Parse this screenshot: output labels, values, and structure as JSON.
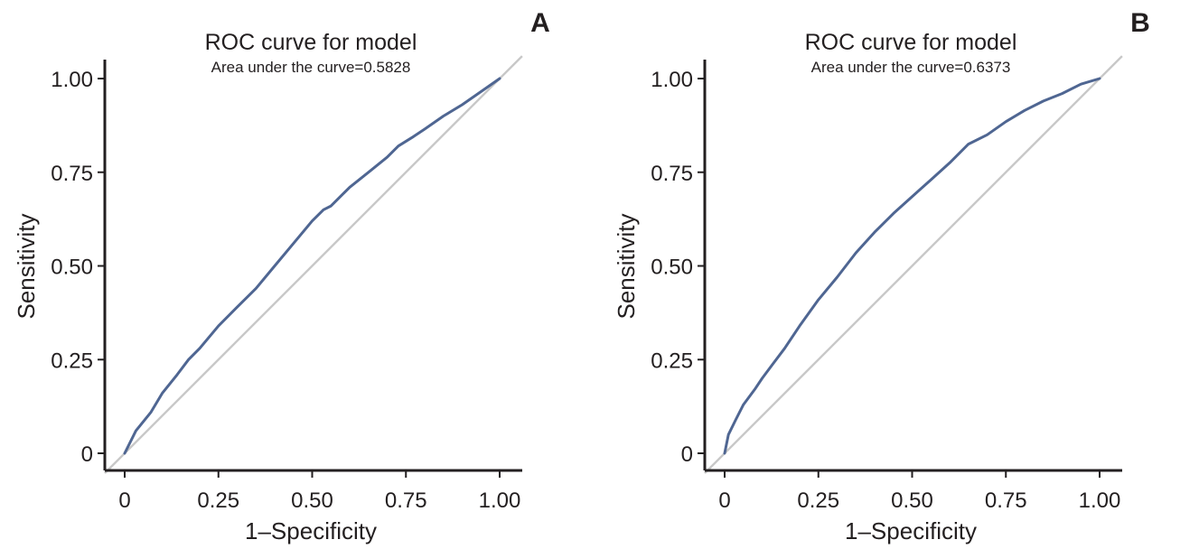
{
  "chart_data": [
    {
      "panel_label": "A",
      "type": "line",
      "title": "ROC curve for model",
      "subtitle": "Area under the curve=0.5828",
      "xlabel": "1–Specificity",
      "ylabel": "Sensitivity",
      "xlim": [
        0,
        1
      ],
      "ylim": [
        0,
        1
      ],
      "xticks": [
        0,
        0.25,
        0.5,
        0.75,
        1
      ],
      "xtick_labels": [
        "0",
        "0.25",
        "0.50",
        "0.75",
        "1.00"
      ],
      "yticks": [
        0,
        0.25,
        0.5,
        0.75,
        1
      ],
      "ytick_labels": [
        "0",
        "0.25",
        "0.50",
        "0.75",
        "1.00"
      ],
      "grid": false,
      "reference_line": {
        "x": [
          0,
          1
        ],
        "y": [
          0,
          1
        ],
        "color": "#c8c8c8"
      },
      "series": [
        {
          "color": "#4f6692",
          "x": [
            0,
            0.03,
            0.07,
            0.1,
            0.14,
            0.17,
            0.2,
            0.25,
            0.3,
            0.35,
            0.4,
            0.45,
            0.5,
            0.53,
            0.55,
            0.6,
            0.65,
            0.7,
            0.73,
            0.77,
            0.8,
            0.85,
            0.9,
            0.95,
            1.0
          ],
          "y": [
            0,
            0.06,
            0.11,
            0.16,
            0.21,
            0.25,
            0.28,
            0.34,
            0.39,
            0.44,
            0.5,
            0.56,
            0.62,
            0.65,
            0.66,
            0.71,
            0.75,
            0.79,
            0.82,
            0.845,
            0.865,
            0.9,
            0.93,
            0.965,
            1.0
          ]
        }
      ]
    },
    {
      "panel_label": "B",
      "type": "line",
      "title": "ROC curve for model",
      "subtitle": "Area under the curve=0.6373",
      "xlabel": "1–Specificity",
      "ylabel": "Sensitivity",
      "xlim": [
        0,
        1
      ],
      "ylim": [
        0,
        1
      ],
      "xticks": [
        0,
        0.25,
        0.5,
        0.75,
        1
      ],
      "xtick_labels": [
        "0",
        "0.25",
        "0.50",
        "0.75",
        "1.00"
      ],
      "yticks": [
        0,
        0.25,
        0.5,
        0.75,
        1
      ],
      "ytick_labels": [
        "0",
        "0.25",
        "0.50",
        "0.75",
        "1.00"
      ],
      "grid": false,
      "reference_line": {
        "x": [
          0,
          1
        ],
        "y": [
          0,
          1
        ],
        "color": "#c8c8c8"
      },
      "series": [
        {
          "color": "#4f6692",
          "x": [
            0,
            0.01,
            0.03,
            0.05,
            0.08,
            0.1,
            0.13,
            0.16,
            0.2,
            0.25,
            0.3,
            0.35,
            0.4,
            0.45,
            0.5,
            0.55,
            0.6,
            0.65,
            0.7,
            0.75,
            0.8,
            0.85,
            0.9,
            0.95,
            1.0
          ],
          "y": [
            0,
            0.05,
            0.09,
            0.13,
            0.17,
            0.2,
            0.24,
            0.28,
            0.34,
            0.41,
            0.47,
            0.535,
            0.59,
            0.64,
            0.685,
            0.73,
            0.775,
            0.825,
            0.85,
            0.885,
            0.915,
            0.94,
            0.96,
            0.985,
            1.0
          ]
        }
      ]
    }
  ]
}
